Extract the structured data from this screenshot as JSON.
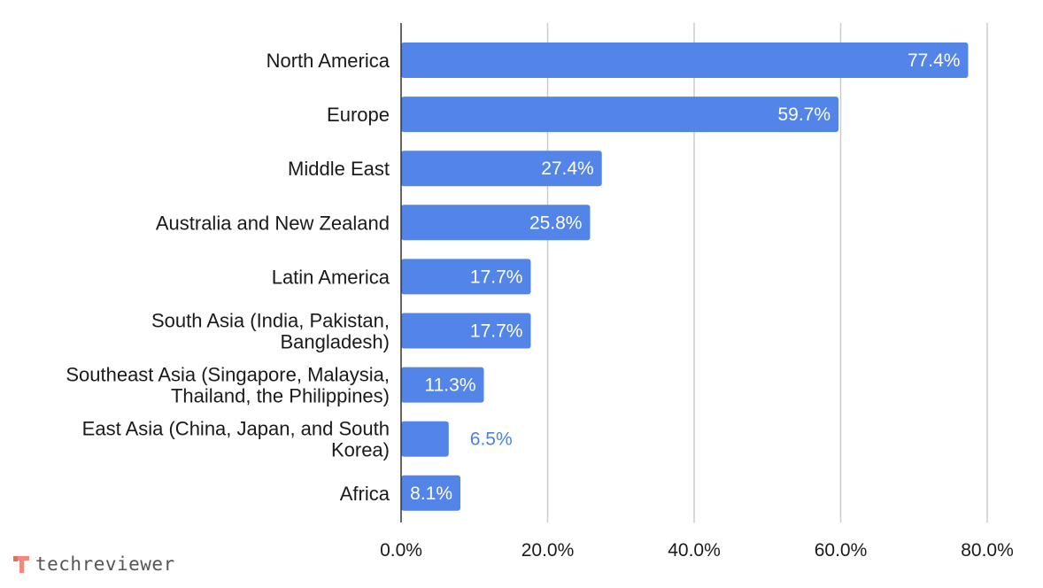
{
  "chart_data": {
    "type": "bar",
    "orientation": "horizontal",
    "categories": [
      [
        "North America"
      ],
      [
        "Europe"
      ],
      [
        "Middle East"
      ],
      [
        "Australia and New Zealand"
      ],
      [
        "Latin America"
      ],
      [
        "South Asia (India, Pakistan,",
        "Bangladesh)"
      ],
      [
        "Southeast Asia (Singapore, Malaysia,",
        "Thailand, the Philippines)"
      ],
      [
        "East Asia (China, Japan, and South",
        "Korea)"
      ],
      [
        "Africa"
      ]
    ],
    "values": [
      77.4,
      59.7,
      27.4,
      25.8,
      17.7,
      17.7,
      11.3,
      6.5,
      8.1
    ],
    "value_labels": [
      "77.4%",
      "59.7%",
      "27.4%",
      "25.8%",
      "17.7%",
      "17.7%",
      "11.3%",
      "6.5%",
      "8.1%"
    ],
    "x_ticks": [
      "0.0%",
      "20.0%",
      "40.0%",
      "60.0%",
      "80.0%"
    ],
    "xlim": [
      0,
      80
    ],
    "grid": true,
    "bar_color": "#5384e8",
    "inside_label_color": "#ffffff",
    "outside_label_color": "#4a82e2",
    "title": "",
    "xlabel": "",
    "ylabel": ""
  },
  "watermark": {
    "text": "techreviewer",
    "icon": "techreviewer-logo-icon",
    "icon_color": "#f08a7d"
  }
}
